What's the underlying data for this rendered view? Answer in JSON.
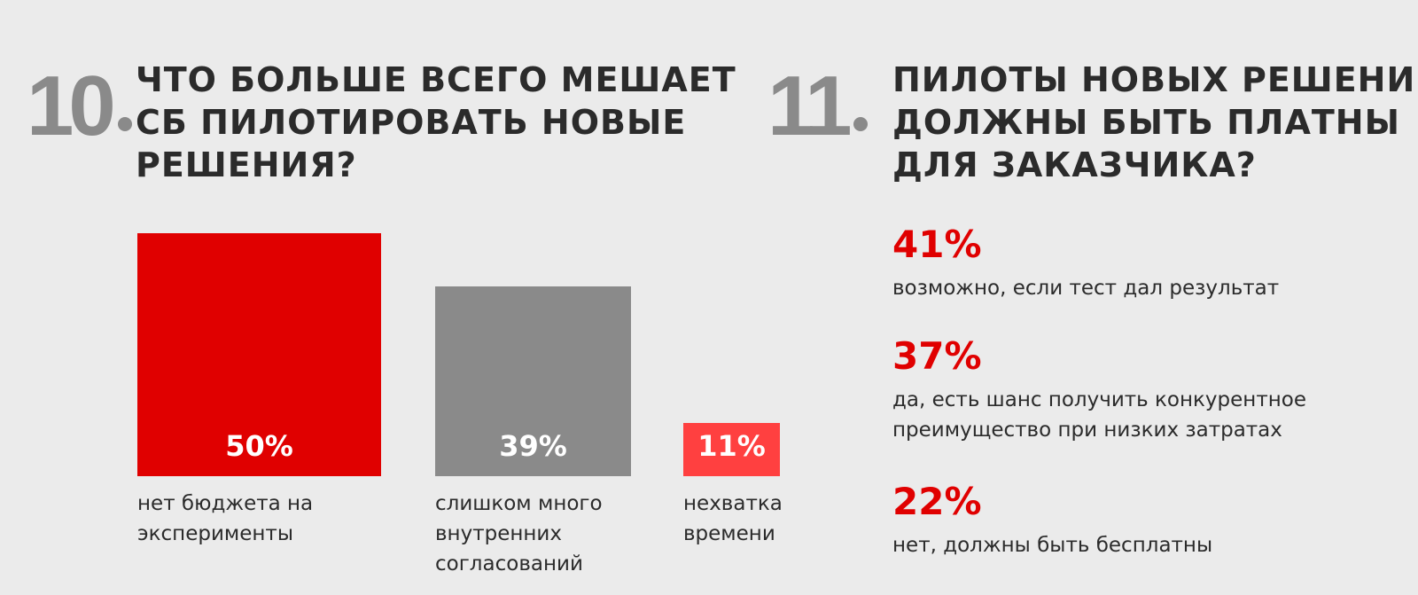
{
  "q10": {
    "number": "10",
    "title_lines": [
      "ЧТО БОЛЬШЕ ВСЕГО МЕШАЕТ",
      "СБ ПИЛОТИРОВАТЬ НОВЫЕ",
      "РЕШЕНИЯ?"
    ]
  },
  "q11": {
    "number": "11",
    "title_lines": [
      "ПИЛОТЫ НОВЫХ РЕШЕНИЙ",
      "ДОЛЖНЫ БЫТЬ ПЛАТНЫ",
      "ДЛЯ ЗАКАЗЧИКА?"
    ],
    "stats": [
      {
        "value": "41%",
        "text_lines": [
          "возможно, если тест дал результат"
        ]
      },
      {
        "value": "37%",
        "text_lines": [
          "да, есть шанс получить конкурентное",
          "преимущество при низких затратах"
        ]
      },
      {
        "value": "22%",
        "text_lines": [
          "нет, должны быть бесплатны"
        ]
      }
    ]
  },
  "chart_data": {
    "type": "bar",
    "title": "ЧТО БОЛЬШЕ ВСЕГО МЕШАЕТ СБ ПИЛОТИРОВАТЬ НОВЫЕ РЕШЕНИЯ?",
    "categories": [
      "нет бюджета на эксперименты",
      "слишком много внутренних согласований",
      "нехватка времени"
    ],
    "category_lines": [
      [
        "нет бюджета на",
        "эксперименты"
      ],
      [
        "слишком много",
        "внутренних",
        "согласований"
      ],
      [
        "нехватка",
        "времени"
      ]
    ],
    "values": [
      50,
      39,
      11
    ],
    "value_labels": [
      "50%",
      "39%",
      "11%"
    ],
    "colors": [
      "#e00000",
      "#8a8a8a",
      "#ff4040"
    ],
    "unit": "%"
  }
}
